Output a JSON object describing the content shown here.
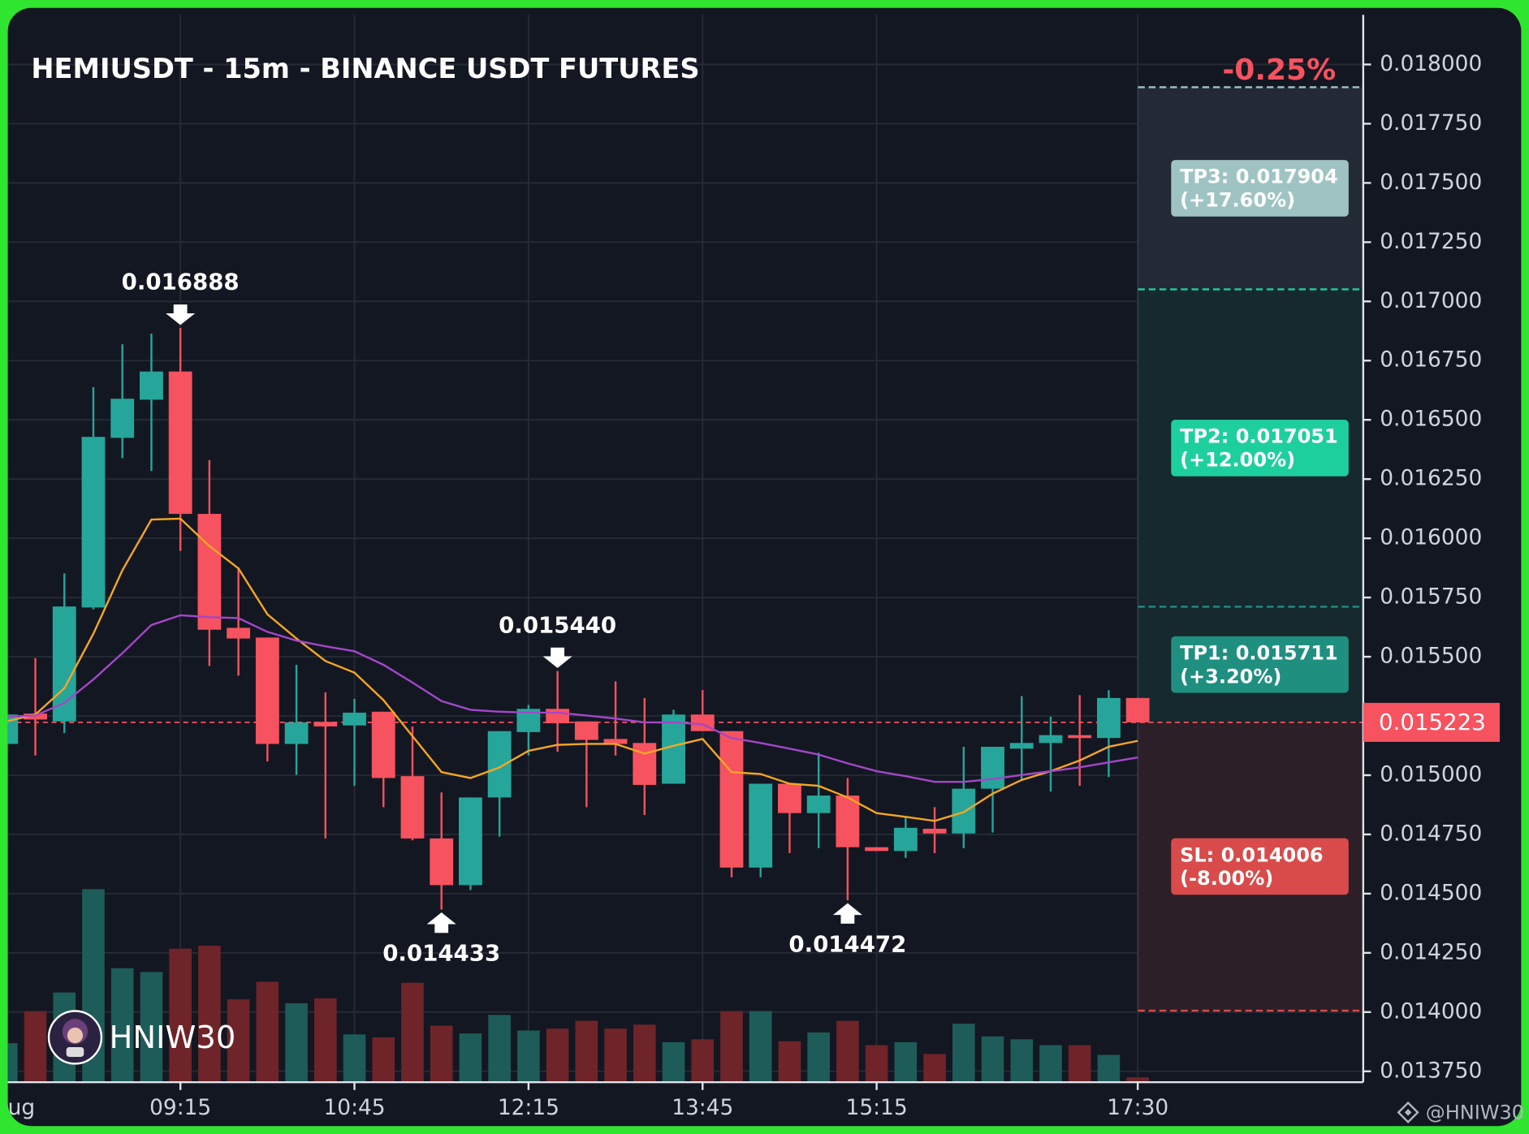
{
  "chart_data": {
    "type": "candlestick",
    "title": "HEMIUSDT - 15m - BINANCE USDT FUTURES",
    "change": "-0.25%",
    "categories": [
      "ug",
      null,
      null,
      null,
      null,
      null,
      "09:15",
      null,
      null,
      null,
      null,
      null,
      "10:45",
      null,
      null,
      null,
      null,
      null,
      "12:15",
      null,
      null,
      null,
      null,
      null,
      "13:45",
      null,
      null,
      null,
      null,
      null,
      "15:15",
      null,
      null,
      null,
      null,
      null,
      null,
      null,
      null,
      "17:30"
    ],
    "open": [
      0.015132,
      0.01526,
      0.015227,
      0.015708,
      0.016424,
      0.016585,
      0.016704,
      0.016103,
      0.015622,
      0.015581,
      0.015132,
      0.015225,
      0.01521,
      0.015268,
      0.014996,
      0.014733,
      0.014536,
      0.014906,
      0.015182,
      0.01528,
      0.015227,
      0.015153,
      0.015136,
      0.014964,
      0.015256,
      0.015186,
      0.01461,
      0.014964,
      0.01484,
      0.014914,
      0.014696,
      0.01468,
      0.014774,
      0.014754,
      0.014943,
      0.015112,
      0.015136,
      0.015169,
      0.015157,
      0.015326
    ],
    "high": [
      0.015268,
      0.015494,
      0.015852,
      0.016638,
      0.016819,
      0.016864,
      0.016888,
      0.01633,
      0.015877,
      0.015581,
      0.015466,
      0.01535,
      0.015322,
      0.015268,
      0.015206,
      0.014927,
      0.014906,
      0.015186,
      0.015297,
      0.01544,
      0.015227,
      0.015396,
      0.015326,
      0.015276,
      0.015359,
      0.015186,
      0.014964,
      0.014964,
      0.015095,
      0.014988,
      0.014696,
      0.014824,
      0.014865,
      0.01512,
      0.01512,
      0.015334,
      0.015247,
      0.015338,
      0.015359,
      0.015326
    ],
    "low": [
      0.015124,
      0.015083,
      0.015178,
      0.0157,
      0.016338,
      0.016284,
      0.015947,
      0.015461,
      0.01542,
      0.015058,
      0.015001,
      0.014733,
      0.014955,
      0.014865,
      0.014725,
      0.014433,
      0.014515,
      0.014741,
      0.015083,
      0.015099,
      0.014865,
      0.015083,
      0.014832,
      0.014964,
      0.015186,
      0.014569,
      0.014569,
      0.014671,
      0.014692,
      0.014472,
      0.01468,
      0.014651,
      0.014671,
      0.014692,
      0.014758,
      0.01498,
      0.014931,
      0.014955,
      0.014992,
      0.015223
    ],
    "close": [
      0.015256,
      0.015235,
      0.015712,
      0.016428,
      0.016589,
      0.016704,
      0.016103,
      0.015614,
      0.015577,
      0.015132,
      0.015223,
      0.015206,
      0.015264,
      0.014988,
      0.014733,
      0.014536,
      0.014906,
      0.015186,
      0.01528,
      0.015219,
      0.015149,
      0.015132,
      0.014959,
      0.015256,
      0.015186,
      0.01461,
      0.014964,
      0.01484,
      0.014914,
      0.014696,
      0.01468,
      0.014778,
      0.014754,
      0.014943,
      0.01512,
      0.015136,
      0.015169,
      0.015161,
      0.015326,
      0.015223
    ],
    "volume": [
      40,
      73,
      92,
      198,
      117,
      113,
      137,
      140,
      85,
      103,
      81,
      86,
      49,
      46,
      102,
      58,
      50,
      69,
      53,
      55,
      63,
      55,
      59,
      41,
      44,
      73,
      73,
      42,
      51,
      63,
      38,
      41,
      29,
      60,
      47,
      44,
      38,
      38,
      28,
      5
    ],
    "lines": [
      {
        "color": "#f5a623",
        "values": [
          0.015227,
          0.015256,
          0.015367,
          0.015597,
          0.015865,
          0.016079,
          0.016083,
          0.015967,
          0.015873,
          0.015679,
          0.015577,
          0.015482,
          0.015433,
          0.015317,
          0.015165,
          0.015013,
          0.014988,
          0.015033,
          0.015103,
          0.015128,
          0.015132,
          0.015132,
          0.015091,
          0.015124,
          0.015153,
          0.015013,
          0.015005,
          0.014964,
          0.014955,
          0.014906,
          0.01484,
          0.014824,
          0.014807,
          0.014844,
          0.014922,
          0.01498,
          0.015017,
          0.015062,
          0.01512,
          0.015145
        ]
      },
      {
        "color": "#a347c7",
        "values": [
          0.015247,
          0.015252,
          0.015305,
          0.015404,
          0.015515,
          0.015634,
          0.015675,
          0.015667,
          0.015663,
          0.015605,
          0.015568,
          0.015544,
          0.015523,
          0.015466,
          0.015391,
          0.015313,
          0.015276,
          0.015268,
          0.015264,
          0.015264,
          0.015252,
          0.015239,
          0.015223,
          0.015223,
          0.015215,
          0.015157,
          0.015136,
          0.015112,
          0.015087,
          0.01505,
          0.015017,
          0.014996,
          0.014972,
          0.014972,
          0.014984,
          0.015001,
          0.015017,
          0.015033,
          0.015054,
          0.015075
        ]
      }
    ],
    "up_color": "#26a69a",
    "down_color": "#f7525f",
    "volume_up_color": "#1d5c58",
    "volume_down_color": "#6e2428",
    "annotations": [
      {
        "value": 0.016888,
        "label": "0.016888"
      },
      {
        "value": 0.01544,
        "label": "0.015440"
      },
      {
        "value": 0.014433,
        "label": "0.014433"
      },
      {
        "value": 0.014472,
        "label": "0.014472"
      }
    ],
    "targets": [
      {
        "label": "TP3: 0.017904",
        "pct": "(+17.60%)",
        "value": 0.017904,
        "color": "#9fc3c3",
        "zone_color": "#232a35"
      },
      {
        "label": "TP2: 0.017051",
        "pct": "(+12.00%)",
        "value": 0.017051,
        "color": "#1ecf9e",
        "zone_color": "#16292e"
      },
      {
        "label": "TP1: 0.015711",
        "pct": "(+3.20%)",
        "value": 0.015711,
        "color": "#1f8f80",
        "zone_color": "#16292e"
      },
      {
        "label": "SL: 0.014006",
        "pct": "(-8.00%)",
        "value": 0.014006,
        "color": "#d94b4b",
        "zone_color": "#2d1f28"
      }
    ],
    "watermark": "HNIW30",
    "credit": "@HNIW30",
    "ylim": [
      0.0137,
      0.0182
    ],
    "yticks": [
      {
        "value": 0.01375,
        "label": "0.013750"
      },
      {
        "value": 0.014,
        "label": "0.014000"
      },
      {
        "value": 0.01425,
        "label": "0.014250"
      },
      {
        "value": 0.0145,
        "label": "0.014500"
      },
      {
        "value": 0.01475,
        "label": "0.014750"
      },
      {
        "value": 0.015,
        "label": "0.015000"
      },
      {
        "value": 0.01525,
        "label": "0.015250"
      },
      {
        "value": 0.0155,
        "label": "0.015500"
      },
      {
        "value": 0.01575,
        "label": "0.015750"
      },
      {
        "value": 0.016,
        "label": "0.016000"
      },
      {
        "value": 0.01625,
        "label": "0.016250"
      },
      {
        "value": 0.0165,
        "label": "0.016500"
      },
      {
        "value": 0.01675,
        "label": "0.016750"
      },
      {
        "value": 0.017,
        "label": "0.017000"
      },
      {
        "value": 0.01725,
        "label": "0.017250"
      },
      {
        "value": 0.0175,
        "label": "0.017500"
      },
      {
        "value": 0.01775,
        "label": "0.017750"
      },
      {
        "value": 0.018,
        "label": "0.018000"
      }
    ],
    "grid": true
  }
}
